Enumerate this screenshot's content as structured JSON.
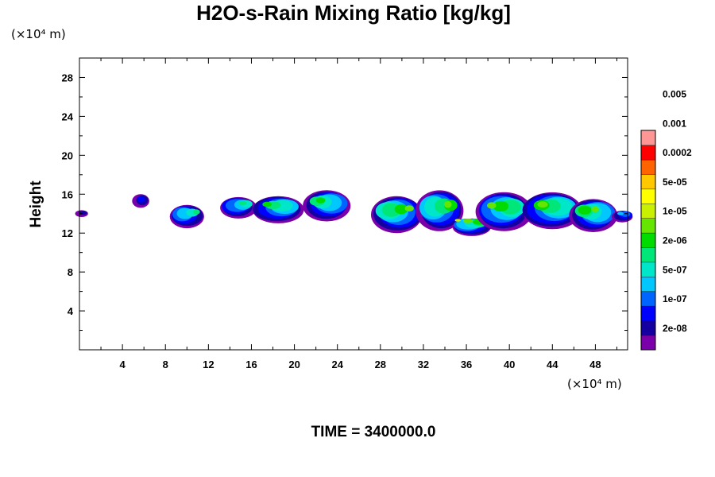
{
  "chart_data": {
    "type": "heatmap",
    "title": "H2O-s-Rain Mixing Ratio [kg/kg]",
    "ylabel": "Height",
    "xlabel": "",
    "x_unit": "(×10⁴ m)",
    "y_unit": "(×10⁴ m)",
    "time_label": "TIME = 3400000.0",
    "xlim": [
      0,
      51
    ],
    "ylim": [
      0,
      30
    ],
    "x_ticks": [
      4,
      8,
      12,
      16,
      20,
      24,
      28,
      32,
      36,
      40,
      44,
      48
    ],
    "y_ticks": [
      4,
      8,
      12,
      16,
      20,
      24,
      28
    ],
    "colorbar": {
      "levels": [
        "2e-08",
        "1e-07",
        "5e-07",
        "2e-06",
        "1e-05",
        "5e-05",
        "0.0002",
        "0.001",
        "0.005"
      ],
      "colors": [
        "#7a00aa",
        "#1400a0",
        "#0000ff",
        "#0064ff",
        "#00c8ff",
        "#00e6c8",
        "#00e678",
        "#00dc00",
        "#64e600",
        "#c8f000",
        "#ffff00",
        "#ffc800",
        "#ff6400",
        "#ff0000",
        "#ff9696"
      ]
    },
    "cloud_blobs": [
      {
        "xc": 0.2,
        "yc": 14.0,
        "rx": 0.6,
        "ry": 0.35,
        "peak": 1
      },
      {
        "xc": 5.7,
        "yc": 15.3,
        "rx": 0.8,
        "ry": 0.7,
        "peak": 2
      },
      {
        "xc": 10.0,
        "yc": 13.7,
        "rx": 1.6,
        "ry": 1.2,
        "peak": 6
      },
      {
        "xc": 14.8,
        "yc": 14.6,
        "rx": 1.7,
        "ry": 1.1,
        "peak": 6
      },
      {
        "xc": 18.5,
        "yc": 14.4,
        "rx": 2.4,
        "ry": 1.4,
        "peak": 7
      },
      {
        "xc": 23.0,
        "yc": 14.8,
        "rx": 2.2,
        "ry": 1.6,
        "peak": 7
      },
      {
        "xc": 29.5,
        "yc": 13.9,
        "rx": 2.4,
        "ry": 1.9,
        "peak": 8
      },
      {
        "xc": 33.5,
        "yc": 14.3,
        "rx": 2.2,
        "ry": 2.1,
        "peak": 8
      },
      {
        "xc": 36.5,
        "yc": 12.6,
        "rx": 1.8,
        "ry": 0.9,
        "peak": 9
      },
      {
        "xc": 39.5,
        "yc": 14.2,
        "rx": 2.6,
        "ry": 2.0,
        "peak": 8
      },
      {
        "xc": 44.0,
        "yc": 14.3,
        "rx": 2.8,
        "ry": 1.9,
        "peak": 8
      },
      {
        "xc": 47.8,
        "yc": 13.8,
        "rx": 2.2,
        "ry": 1.7,
        "peak": 8
      },
      {
        "xc": 50.5,
        "yc": 13.7,
        "rx": 1.0,
        "ry": 0.6,
        "peak": 4
      }
    ]
  }
}
